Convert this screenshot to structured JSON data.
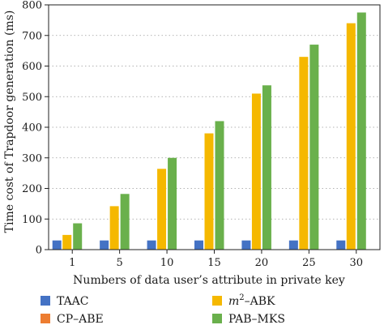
{
  "chart_data": {
    "type": "bar",
    "title": "",
    "xlabel": "Numbers of data user’s attribute in private key",
    "ylabel": "Time cost of Trapdoor generation (ms)",
    "ylim": [
      0,
      800
    ],
    "yticks": [
      "0",
      "100",
      "200",
      "300",
      "400",
      "500",
      "600",
      "700",
      "800"
    ],
    "categories": [
      "1",
      "5",
      "10",
      "15",
      "20",
      "25",
      "30"
    ],
    "grid": "horizontal-dotted",
    "legend_position": "bottom",
    "series": [
      {
        "name": "TAAC",
        "color": "#4472c4",
        "values": [
          30,
          30,
          30,
          30,
          30,
          30,
          30
        ]
      },
      {
        "name": "CP–ABE",
        "color": "#ed7d31",
        "values": [
          0,
          0,
          0,
          0,
          0,
          0,
          0
        ]
      },
      {
        "name": "m²–ABK",
        "color": "#f5b800",
        "values": [
          48,
          142,
          264,
          380,
          510,
          630,
          740
        ]
      },
      {
        "name": "PAB–MKS",
        "color": "#6ab04c",
        "values": [
          86,
          182,
          300,
          420,
          537,
          670,
          775
        ]
      }
    ]
  }
}
